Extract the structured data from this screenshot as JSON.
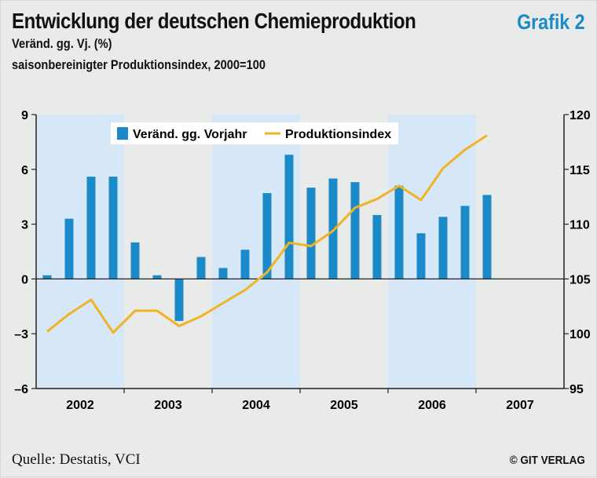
{
  "header": {
    "title": "Entwicklung der deutschen Chemieproduktion",
    "badge": "Grafik 2",
    "subtitle1": "Veränd. gg. Vj. (%)",
    "subtitle2": "saisonbereinigter Produktionsindex, 2000=100"
  },
  "footer": {
    "source": "Quelle: Destatis, VCI",
    "copyright": "© GIT VERLAG"
  },
  "colors": {
    "bar": "#1a8bc8",
    "line": "#f0b323",
    "band": "#d6e7f7",
    "background": "#e9eaea"
  },
  "chart_data": {
    "type": "bar",
    "legend": {
      "bars_label": "Veränd. gg. Vorjahr",
      "line_label": "Produktionsindex",
      "placement": "top-center"
    },
    "year_labels": [
      "2002",
      "2003",
      "2004",
      "2005",
      "2006",
      "2007"
    ],
    "quarters": [
      "2002-Q1",
      "2002-Q2",
      "2002-Q3",
      "2002-Q4",
      "2003-Q1",
      "2003-Q2",
      "2003-Q3",
      "2003-Q4",
      "2004-Q1",
      "2004-Q2",
      "2004-Q3",
      "2004-Q4",
      "2005-Q1",
      "2005-Q2",
      "2005-Q3",
      "2005-Q4",
      "2006-Q1",
      "2006-Q2",
      "2006-Q3",
      "2006-Q4",
      "2007-Q1",
      "2007-Q2",
      "2007-Q3",
      "2007-Q4"
    ],
    "series": [
      {
        "name": "Veränd. gg. Vorjahr",
        "axis": "left",
        "kind": "bar",
        "values": [
          0.2,
          3.3,
          5.6,
          5.6,
          2.0,
          0.2,
          -2.3,
          1.2,
          0.6,
          1.6,
          4.7,
          6.8,
          5.0,
          5.5,
          5.3,
          3.5,
          5.1,
          2.5,
          3.4,
          4.0,
          4.6
        ]
      },
      {
        "name": "Produktionsindex",
        "axis": "right",
        "kind": "line",
        "values": [
          100.2,
          101.8,
          103.1,
          100.1,
          102.1,
          102.1,
          100.7,
          101.6,
          102.8,
          104.0,
          105.6,
          108.3,
          108.0,
          109.4,
          111.5,
          112.3,
          113.5,
          112.2,
          115.1,
          116.8,
          118.1
        ]
      }
    ],
    "left_axis": {
      "min": -6,
      "max": 9,
      "ticks": [
        "9",
        "6",
        "3",
        "0",
        "–3",
        "–6"
      ],
      "tick_values": [
        9,
        6,
        3,
        0,
        -3,
        -6
      ]
    },
    "right_axis": {
      "min": 95,
      "max": 120,
      "ticks": [
        "120",
        "115",
        "110",
        "105",
        "100",
        "95"
      ],
      "tick_values": [
        120,
        115,
        110,
        105,
        100,
        95
      ]
    },
    "shaded_years": [
      "2002",
      "2004",
      "2006"
    ],
    "grid": false
  }
}
